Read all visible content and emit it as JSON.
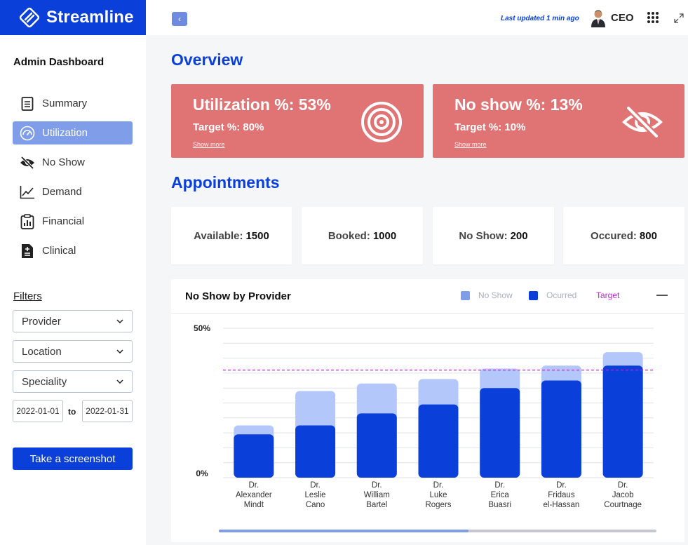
{
  "brand": {
    "name": "Streamline"
  },
  "sidebar": {
    "title": "Admin Dashboard",
    "items": [
      {
        "label": "Summary",
        "icon": "document-icon"
      },
      {
        "label": "Utilization",
        "icon": "gauge-icon",
        "active": true
      },
      {
        "label": "No Show",
        "icon": "eye-slash-icon"
      },
      {
        "label": "Demand",
        "icon": "line-chart-icon"
      },
      {
        "label": "Financial",
        "icon": "clipboard-chart-icon"
      },
      {
        "label": "Clinical",
        "icon": "medical-file-icon"
      }
    ],
    "filters_title": "Filters",
    "filters": {
      "provider": "Provider",
      "location": "Location",
      "speciality": "Speciality",
      "date_from": "2022-01-01",
      "to_label": "to",
      "date_to": "2022-01-31"
    },
    "screenshot_button": "Take a screenshot"
  },
  "topbar": {
    "back_icon": "chevron-left-icon",
    "last_updated": "Last updated 1 min ago",
    "user": "CEO"
  },
  "overview": {
    "title": "Overview",
    "kpis": [
      {
        "big": "Utilization %: 53%",
        "target": "Target %: 80%",
        "more": "Show more",
        "icon": "target-icon"
      },
      {
        "big": "No show %: 13%",
        "target": "Target %: 10%",
        "more": "Show more",
        "icon": "eye-slash-icon"
      }
    ]
  },
  "appointments": {
    "title": "Appointments",
    "cards": [
      {
        "label": "Available:",
        "value": "1500"
      },
      {
        "label": "Booked:",
        "value": "1000"
      },
      {
        "label": "No Show:",
        "value": "200"
      },
      {
        "label": "Occured:",
        "value": "800"
      }
    ]
  },
  "colors": {
    "brand": "#0a3fd9",
    "kpi": "#e07474",
    "no_show": "#b3c7fb",
    "occurred": "#0a3fd9",
    "target": "#c026d3",
    "active_nav": "#7f9de8"
  },
  "chart_data": {
    "type": "bar",
    "title": "No Show by Provider",
    "legend": [
      "No Show",
      "Ocurred",
      "Target"
    ],
    "categories": [
      [
        "Dr.",
        "Alexander",
        "Mindt"
      ],
      [
        "Dr.",
        "Leslie",
        "Cano"
      ],
      [
        "Dr.",
        "William",
        "Bartel"
      ],
      [
        "Dr.",
        "Luke",
        "Rogers"
      ],
      [
        "Dr.",
        "Erica",
        "Buasri"
      ],
      [
        "Dr.",
        "Fridaus",
        "el-Hassan"
      ],
      [
        "Dr.",
        "Jacob",
        "Courtnage"
      ]
    ],
    "series": [
      {
        "name": "Ocurred",
        "values": [
          14.5,
          17.5,
          21.5,
          24.5,
          30,
          32.5,
          37.5
        ]
      },
      {
        "name": "No Show",
        "values": [
          3,
          11.5,
          10,
          8.5,
          6.5,
          5,
          4.5
        ]
      }
    ],
    "target": 36,
    "ylim": [
      0,
      50
    ],
    "yticks": [
      "0%",
      "50%"
    ],
    "stacked": true,
    "grid": true
  }
}
